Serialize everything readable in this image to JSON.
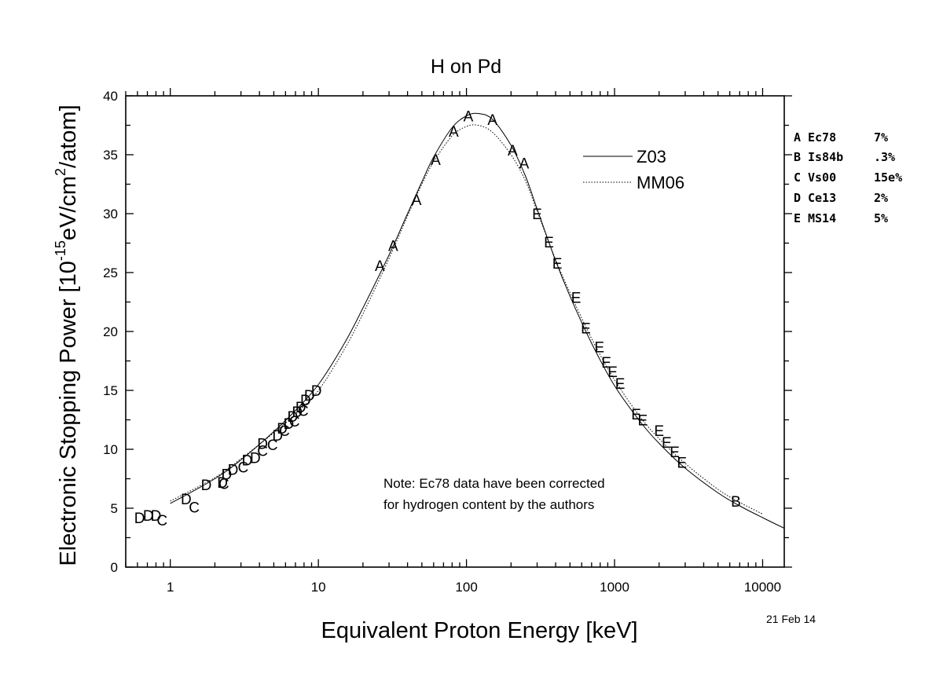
{
  "chart_data": {
    "type": "scatter",
    "title": "H on Pd",
    "xlabel": "Equivalent Proton Energy [keV]",
    "ylabel_main": "Electronic Stopping Power [10",
    "ylabel_exp": "-15",
    "ylabel_unit": "eV/cm",
    "ylabel_sq": "2",
    "ylabel_tail": "/atom]",
    "x_scale": "log",
    "xlim": [
      0.5,
      14000
    ],
    "ylim": [
      0,
      40
    ],
    "x_ticks": [
      1,
      10,
      100,
      1000,
      10000
    ],
    "x_tick_labels": [
      "1",
      "10",
      "100",
      "1000",
      "10000"
    ],
    "y_ticks": [
      0,
      5,
      10,
      15,
      20,
      25,
      30,
      35,
      40
    ],
    "y_tick_labels": [
      "0",
      "5",
      "10",
      "15",
      "20",
      "25",
      "30",
      "35",
      "40"
    ],
    "curves": [
      {
        "name": "Z03",
        "style": "solid",
        "x": [
          1,
          2,
          3,
          5,
          7,
          10,
          15,
          20,
          30,
          40,
          50,
          60,
          80,
          100,
          120,
          150,
          200,
          250,
          300,
          400,
          500,
          700,
          1000,
          1500,
          2000,
          3000,
          5000,
          7000,
          10000,
          14000
        ],
        "y": [
          5.4,
          7.5,
          9.1,
          11.5,
          13.3,
          15.5,
          19.0,
          22.0,
          26.5,
          30.0,
          32.7,
          34.8,
          37.3,
          38.3,
          38.5,
          38.0,
          35.8,
          33.2,
          30.4,
          26.0,
          23.0,
          19.0,
          15.4,
          12.3,
          10.5,
          8.4,
          6.3,
          5.2,
          4.2,
          3.3
        ]
      },
      {
        "name": "MM06",
        "style": "dotted",
        "x": [
          1,
          2,
          3,
          5,
          7,
          10,
          15,
          20,
          30,
          40,
          50,
          60,
          80,
          100,
          120,
          150,
          200,
          250,
          300,
          400,
          500,
          700,
          1000,
          1500,
          2000,
          3000,
          5000,
          7000,
          10000
        ],
        "y": [
          5.6,
          7.6,
          9.2,
          11.4,
          13.0,
          15.0,
          18.5,
          21.5,
          26.2,
          29.8,
          32.5,
          34.4,
          36.6,
          37.4,
          37.5,
          36.9,
          35.0,
          32.8,
          30.2,
          26.1,
          23.3,
          19.4,
          15.9,
          12.7,
          10.9,
          8.8,
          6.6,
          5.5,
          4.5
        ]
      }
    ],
    "points": [
      {
        "label": "A",
        "x": 26,
        "y": 25.6
      },
      {
        "label": "A",
        "x": 32,
        "y": 27.3
      },
      {
        "label": "A",
        "x": 46,
        "y": 31.2
      },
      {
        "label": "A",
        "x": 62,
        "y": 34.6
      },
      {
        "label": "A",
        "x": 82,
        "y": 37.0
      },
      {
        "label": "A",
        "x": 103,
        "y": 38.3
      },
      {
        "label": "A",
        "x": 150,
        "y": 38.0
      },
      {
        "label": "A",
        "x": 205,
        "y": 35.4
      },
      {
        "label": "A",
        "x": 245,
        "y": 34.3
      },
      {
        "label": "B",
        "x": 6600,
        "y": 5.6
      },
      {
        "label": "C",
        "x": 0.88,
        "y": 4.0
      },
      {
        "label": "C",
        "x": 1.45,
        "y": 5.1
      },
      {
        "label": "C",
        "x": 2.3,
        "y": 7.1
      },
      {
        "label": "C",
        "x": 3.1,
        "y": 8.5
      },
      {
        "label": "C",
        "x": 4.2,
        "y": 9.9
      },
      {
        "label": "C",
        "x": 4.9,
        "y": 10.4
      },
      {
        "label": "C",
        "x": 5.9,
        "y": 11.6
      },
      {
        "label": "C",
        "x": 6.9,
        "y": 12.4
      },
      {
        "label": "C",
        "x": 7.9,
        "y": 13.3
      },
      {
        "label": "D",
        "x": 0.62,
        "y": 4.2
      },
      {
        "label": "D",
        "x": 0.71,
        "y": 4.4
      },
      {
        "label": "D",
        "x": 0.8,
        "y": 4.4
      },
      {
        "label": "D",
        "x": 1.28,
        "y": 5.8
      },
      {
        "label": "D",
        "x": 1.75,
        "y": 7.0
      },
      {
        "label": "D",
        "x": 2.25,
        "y": 7.2
      },
      {
        "label": "D",
        "x": 2.4,
        "y": 7.9
      },
      {
        "label": "D",
        "x": 2.65,
        "y": 8.3
      },
      {
        "label": "D",
        "x": 3.3,
        "y": 9.1
      },
      {
        "label": "D",
        "x": 3.75,
        "y": 9.3
      },
      {
        "label": "D",
        "x": 4.2,
        "y": 10.5
      },
      {
        "label": "D",
        "x": 5.3,
        "y": 11.2
      },
      {
        "label": "D",
        "x": 5.7,
        "y": 11.8
      },
      {
        "label": "D",
        "x": 6.3,
        "y": 12.2
      },
      {
        "label": "D",
        "x": 6.7,
        "y": 12.8
      },
      {
        "label": "D",
        "x": 7.2,
        "y": 13.2
      },
      {
        "label": "D",
        "x": 7.6,
        "y": 13.6
      },
      {
        "label": "D",
        "x": 8.2,
        "y": 14.2
      },
      {
        "label": "D",
        "x": 8.7,
        "y": 14.6
      },
      {
        "label": "D",
        "x": 9.7,
        "y": 15.0
      },
      {
        "label": "E",
        "x": 300,
        "y": 30.0
      },
      {
        "label": "E",
        "x": 360,
        "y": 27.6
      },
      {
        "label": "E",
        "x": 410,
        "y": 25.8
      },
      {
        "label": "E",
        "x": 550,
        "y": 22.9
      },
      {
        "label": "E",
        "x": 640,
        "y": 20.3
      },
      {
        "label": "E",
        "x": 790,
        "y": 18.7
      },
      {
        "label": "E",
        "x": 880,
        "y": 17.4
      },
      {
        "label": "E",
        "x": 970,
        "y": 16.6
      },
      {
        "label": "E",
        "x": 1090,
        "y": 15.6
      },
      {
        "label": "E",
        "x": 1400,
        "y": 13.0
      },
      {
        "label": "E",
        "x": 1550,
        "y": 12.5
      },
      {
        "label": "E",
        "x": 2000,
        "y": 11.6
      },
      {
        "label": "E",
        "x": 2250,
        "y": 10.6
      },
      {
        "label": "E",
        "x": 2550,
        "y": 9.8
      },
      {
        "label": "E",
        "x": 2850,
        "y": 8.9
      }
    ],
    "legend": [
      {
        "name": "Z03",
        "style": "solid"
      },
      {
        "name": "MM06",
        "style": "dotted"
      }
    ],
    "legend_position": "top-right",
    "datasets": [
      {
        "letter": "A",
        "ref": "Ec78",
        "err": "7%"
      },
      {
        "letter": "B",
        "ref": "Is84b",
        "err": ".3%"
      },
      {
        "letter": "C",
        "ref": "Vs00",
        "err": "15e%"
      },
      {
        "letter": "D",
        "ref": "Ce13",
        "err": "2%"
      },
      {
        "letter": "E",
        "ref": "MS14",
        "err": "5%"
      }
    ],
    "note_lines": [
      "Note: Ec78 data have been corrected",
      "for hydrogen content by the authors"
    ],
    "date": "21 Feb 14"
  }
}
